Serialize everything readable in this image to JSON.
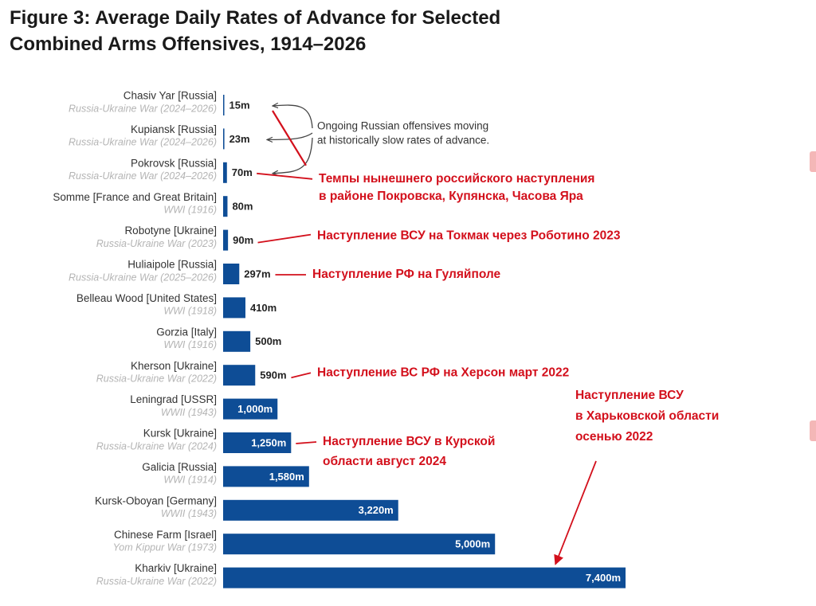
{
  "title": {
    "line1": "Figure 3: Average Daily Rates of Advance for Selected",
    "line2": "Combined Arms Offensives, 1914–2026"
  },
  "colors": {
    "bar": "#0e4d96",
    "label": "#333333",
    "sublabel": "#b4b4b4",
    "annotation": "#d3101c",
    "note": "#333333"
  },
  "chart_data": {
    "type": "bar",
    "orientation": "horizontal",
    "title": "Figure 3: Average Daily Rates of Advance for Selected Combined Arms Offensives, 1914–2026",
    "xlabel": "",
    "ylabel": "",
    "xlim": [
      0,
      7400
    ],
    "grid": false,
    "categories": [
      {
        "name": "Chasiv Yar [Russia]",
        "war": "Russia-Ukraine War (2024–2026)",
        "value": 15,
        "label": "15m"
      },
      {
        "name": "Kupiansk [Russia]",
        "war": "Russia-Ukraine War (2024–2026)",
        "value": 23,
        "label": "23m"
      },
      {
        "name": "Pokrovsk [Russia]",
        "war": "Russia-Ukraine War (2024–2026)",
        "value": 70,
        "label": "70m"
      },
      {
        "name": "Somme [France and Great Britain]",
        "war": "WWI (1916)",
        "value": 80,
        "label": "80m"
      },
      {
        "name": "Robotyne [Ukraine]",
        "war": "Russia-Ukraine War (2023)",
        "value": 90,
        "label": "90m"
      },
      {
        "name": "Huliaipole [Russia]",
        "war": "Russia-Ukraine War (2025–2026)",
        "value": 297,
        "label": "297m"
      },
      {
        "name": "Belleau Wood [United States]",
        "war": "WWI (1918)",
        "value": 410,
        "label": "410m"
      },
      {
        "name": "Gorzia [Italy]",
        "war": "WWI (1916)",
        "value": 500,
        "label": "500m"
      },
      {
        "name": "Kherson [Ukraine]",
        "war": "Russia-Ukraine War (2022)",
        "value": 590,
        "label": "590m"
      },
      {
        "name": "Leningrad [USSR]",
        "war": "WWII (1943)",
        "value": 1000,
        "label": "1,000m"
      },
      {
        "name": "Kursk [Ukraine]",
        "war": "Russia-Ukraine War (2024)",
        "value": 1250,
        "label": "1,250m"
      },
      {
        "name": "Galicia [Russia]",
        "war": "WWI (1914)",
        "value": 1580,
        "label": "1,580m"
      },
      {
        "name": "Kursk-Oboyan [Germany]",
        "war": "WWII (1943)",
        "value": 3220,
        "label": "3,220m"
      },
      {
        "name": "Chinese Farm [Israel]",
        "war": "Yom Kippur War (1973)",
        "value": 5000,
        "label": "5,000m"
      },
      {
        "name": "Kharkiv [Ukraine]",
        "war": "Russia-Ukraine War (2022)",
        "value": 7400,
        "label": "7,400m"
      }
    ],
    "note": {
      "lines": [
        "Ongoing Russian offensives moving",
        "at historically slow rates of advance."
      ],
      "targets": [
        "Chasiv Yar [Russia]",
        "Kupiansk [Russia]",
        "Pokrovsk [Russia]"
      ]
    },
    "annotations": [
      {
        "lines": [
          "Темпы нынешнего российского наступления",
          "в районе Покровска, Купянска, Часова Яра"
        ],
        "points_to": "Pokrovsk [Russia]"
      },
      {
        "lines": [
          "Наступление ВСУ на Токмак через Роботино 2023"
        ],
        "points_to": "Robotyne [Ukraine]"
      },
      {
        "lines": [
          "Наступление РФ на Гуляйполе"
        ],
        "points_to": "Huliaipole [Russia]"
      },
      {
        "lines": [
          "Наступление ВС РФ на Херсон март 2022"
        ],
        "points_to": "Kherson [Ukraine]"
      },
      {
        "lines": [
          "Наступление ВСУ в Курской",
          "области август 2024"
        ],
        "points_to": "Kursk [Ukraine]"
      },
      {
        "lines": [
          "Наступление ВСУ",
          "в Харьковской области",
          "осенью 2022"
        ],
        "points_to": "Kharkiv [Ukraine]"
      }
    ]
  }
}
